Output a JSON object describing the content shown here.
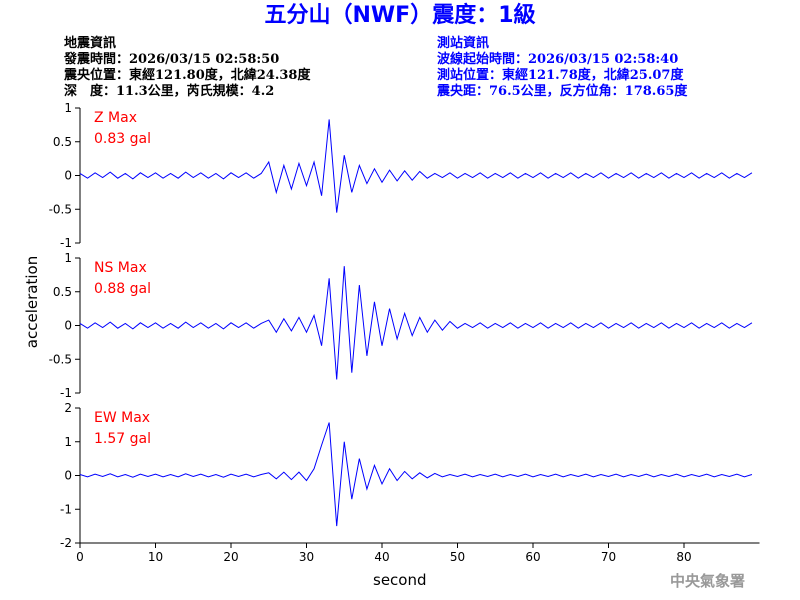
{
  "header": {
    "title": "五分山（NWF）震度：1級",
    "quake_info": [
      "地震資訊",
      "發震時間：2026/03/15 02:58:50",
      "震央位置：東經121.80度，北緯24.38度",
      "深　度：11.3公里，芮氏規模：4.2"
    ],
    "station_info": [
      "測站資訊",
      "波線起始時間：2026/03/15 02:58:40",
      "測站位置：東經121.78度，北緯25.07度",
      "震央距：76.5公里，反方位角：178.65度"
    ]
  },
  "y_label": "acceleration",
  "footer": "中央氣象署",
  "chart_data": [
    {
      "type": "line",
      "name": "Z Max",
      "max_label": "0.83 gal",
      "color": "#0000ff",
      "label_color": "#ff0000",
      "xlim": [
        0,
        90
      ],
      "ylim": [
        -1,
        1
      ],
      "yticks": [
        -1,
        -0.5,
        0,
        0.5,
        1
      ],
      "x": [
        0,
        1,
        2,
        3,
        4,
        5,
        6,
        7,
        8,
        9,
        10,
        11,
        12,
        13,
        14,
        15,
        16,
        17,
        18,
        19,
        20,
        21,
        22,
        23,
        24,
        25,
        26,
        27,
        28,
        29,
        30,
        31,
        32,
        33,
        34,
        35,
        36,
        37,
        38,
        39,
        40,
        41,
        42,
        43,
        44,
        45,
        46,
        47,
        48,
        49,
        50,
        51,
        52,
        53,
        54,
        55,
        56,
        57,
        58,
        59,
        60,
        61,
        62,
        63,
        64,
        65,
        66,
        67,
        68,
        69,
        70,
        71,
        72,
        73,
        74,
        75,
        76,
        77,
        78,
        79,
        80,
        81,
        82,
        83,
        84,
        85,
        86,
        87,
        88,
        89
      ],
      "values": [
        0.03,
        -0.04,
        0.04,
        -0.03,
        0.05,
        -0.04,
        0.03,
        -0.05,
        0.04,
        -0.03,
        0.04,
        -0.04,
        0.03,
        -0.04,
        0.05,
        -0.03,
        0.04,
        -0.04,
        0.03,
        -0.05,
        0.04,
        -0.03,
        0.04,
        -0.04,
        0.03,
        0.2,
        -0.25,
        0.15,
        -0.2,
        0.18,
        -0.15,
        0.2,
        -0.3,
        0.83,
        -0.55,
        0.3,
        -0.25,
        0.15,
        -0.12,
        0.1,
        -0.1,
        0.08,
        -0.08,
        0.07,
        -0.07,
        0.06,
        -0.04,
        0.03,
        -0.03,
        0.04,
        -0.04,
        0.03,
        -0.03,
        0.04,
        -0.04,
        0.03,
        -0.03,
        0.04,
        -0.04,
        0.03,
        -0.03,
        0.04,
        -0.04,
        0.03,
        -0.03,
        0.04,
        -0.04,
        0.03,
        -0.03,
        0.04,
        -0.04,
        0.03,
        -0.03,
        0.04,
        -0.04,
        0.03,
        -0.03,
        0.04,
        -0.04,
        0.03,
        -0.03,
        0.04,
        -0.04,
        0.03,
        -0.03,
        0.04,
        -0.04,
        0.03,
        -0.03,
        0.04
      ]
    },
    {
      "type": "line",
      "name": "NS Max",
      "max_label": "0.88 gal",
      "color": "#0000ff",
      "label_color": "#ff0000",
      "xlim": [
        0,
        90
      ],
      "ylim": [
        -1,
        1
      ],
      "yticks": [
        -1,
        -0.5,
        0,
        0.5,
        1
      ],
      "x": [
        0,
        1,
        2,
        3,
        4,
        5,
        6,
        7,
        8,
        9,
        10,
        11,
        12,
        13,
        14,
        15,
        16,
        17,
        18,
        19,
        20,
        21,
        22,
        23,
        24,
        25,
        26,
        27,
        28,
        29,
        30,
        31,
        32,
        33,
        34,
        35,
        36,
        37,
        38,
        39,
        40,
        41,
        42,
        43,
        44,
        45,
        46,
        47,
        48,
        49,
        50,
        51,
        52,
        53,
        54,
        55,
        56,
        57,
        58,
        59,
        60,
        61,
        62,
        63,
        64,
        65,
        66,
        67,
        68,
        69,
        70,
        71,
        72,
        73,
        74,
        75,
        76,
        77,
        78,
        79,
        80,
        81,
        82,
        83,
        84,
        85,
        86,
        87,
        88,
        89
      ],
      "values": [
        0.03,
        -0.04,
        0.04,
        -0.03,
        0.05,
        -0.04,
        0.03,
        -0.05,
        0.04,
        -0.03,
        0.04,
        -0.04,
        0.03,
        -0.04,
        0.05,
        -0.03,
        0.04,
        -0.04,
        0.03,
        -0.05,
        0.04,
        -0.03,
        0.04,
        -0.04,
        0.03,
        0.08,
        -0.1,
        0.1,
        -0.08,
        0.12,
        -0.1,
        0.15,
        -0.3,
        0.7,
        -0.8,
        0.88,
        -0.7,
        0.6,
        -0.45,
        0.35,
        -0.3,
        0.25,
        -0.2,
        0.18,
        -0.15,
        0.12,
        -0.1,
        0.08,
        -0.07,
        0.06,
        -0.04,
        0.03,
        -0.03,
        0.04,
        -0.04,
        0.03,
        -0.03,
        0.04,
        -0.04,
        0.03,
        -0.03,
        0.04,
        -0.04,
        0.03,
        -0.03,
        0.04,
        -0.04,
        0.03,
        -0.03,
        0.04,
        -0.04,
        0.03,
        -0.03,
        0.04,
        -0.04,
        0.03,
        -0.03,
        0.04,
        -0.04,
        0.03,
        -0.03,
        0.04,
        -0.04,
        0.03,
        -0.03,
        0.04,
        -0.04,
        0.03,
        -0.03,
        0.04
      ]
    },
    {
      "type": "line",
      "name": "EW Max",
      "max_label": "1.57 gal",
      "color": "#0000ff",
      "label_color": "#ff0000",
      "xlim": [
        0,
        90
      ],
      "ylim": [
        -2,
        2
      ],
      "yticks": [
        -2,
        -1,
        0,
        1,
        2
      ],
      "xticks": [
        0,
        10,
        20,
        30,
        40,
        50,
        60,
        70,
        80
      ],
      "x_label": "second",
      "x": [
        0,
        1,
        2,
        3,
        4,
        5,
        6,
        7,
        8,
        9,
        10,
        11,
        12,
        13,
        14,
        15,
        16,
        17,
        18,
        19,
        20,
        21,
        22,
        23,
        24,
        25,
        26,
        27,
        28,
        29,
        30,
        31,
        32,
        33,
        34,
        35,
        36,
        37,
        38,
        39,
        40,
        41,
        42,
        43,
        44,
        45,
        46,
        47,
        48,
        49,
        50,
        51,
        52,
        53,
        54,
        55,
        56,
        57,
        58,
        59,
        60,
        61,
        62,
        63,
        64,
        65,
        66,
        67,
        68,
        69,
        70,
        71,
        72,
        73,
        74,
        75,
        76,
        77,
        78,
        79,
        80,
        81,
        82,
        83,
        84,
        85,
        86,
        87,
        88,
        89
      ],
      "values": [
        0.03,
        -0.04,
        0.04,
        -0.03,
        0.05,
        -0.04,
        0.03,
        -0.05,
        0.04,
        -0.03,
        0.04,
        -0.04,
        0.03,
        -0.04,
        0.05,
        -0.03,
        0.04,
        -0.04,
        0.03,
        -0.05,
        0.04,
        -0.03,
        0.04,
        -0.04,
        0.03,
        0.08,
        -0.1,
        0.1,
        -0.12,
        0.1,
        -0.15,
        0.2,
        0.9,
        1.57,
        -1.5,
        1.0,
        -0.7,
        0.5,
        -0.4,
        0.3,
        -0.25,
        0.2,
        -0.15,
        0.12,
        -0.1,
        0.08,
        -0.07,
        0.06,
        -0.04,
        0.03,
        -0.03,
        0.04,
        -0.04,
        0.03,
        -0.03,
        0.04,
        -0.04,
        0.03,
        -0.03,
        0.04,
        -0.04,
        0.03,
        -0.03,
        0.04,
        -0.04,
        0.03,
        -0.03,
        0.04,
        -0.04,
        0.03,
        -0.03,
        0.04,
        -0.04,
        0.03,
        -0.03,
        0.04,
        -0.04,
        0.03,
        -0.03,
        0.04,
        -0.04,
        0.03,
        -0.03,
        0.04,
        -0.04,
        0.03,
        -0.03,
        0.04,
        -0.04,
        0.03
      ]
    }
  ]
}
